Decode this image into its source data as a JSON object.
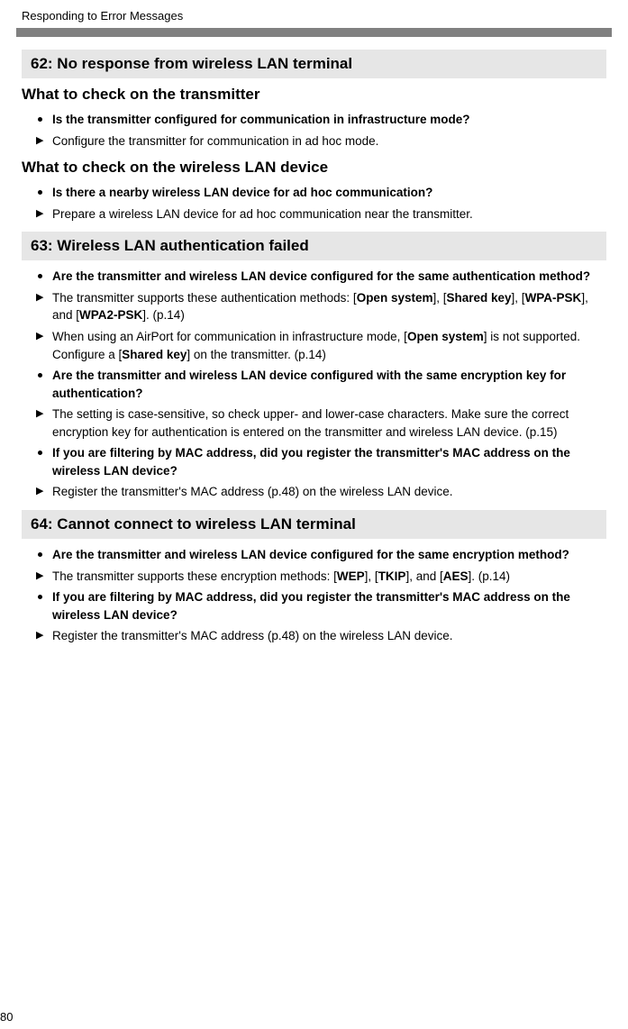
{
  "runningHeader": "Responding to Error Messages",
  "pageNumber": "80",
  "sections": [
    {
      "code": "62",
      "title": "No response from wireless LAN terminal",
      "blocks": [
        {
          "subheading": "What to check on the transmitter",
          "items": [
            {
              "kind": "q",
              "segments": [
                {
                  "t": "Is the transmitter configured for communication in infrastructure mode?"
                }
              ]
            },
            {
              "kind": "a",
              "segments": [
                {
                  "t": "Configure the transmitter for communication in ad hoc mode."
                }
              ]
            }
          ]
        },
        {
          "subheading": "What to check on the wireless LAN device",
          "items": [
            {
              "kind": "q",
              "segments": [
                {
                  "t": "Is there a nearby wireless LAN device for ad hoc communication?"
                }
              ]
            },
            {
              "kind": "a",
              "segments": [
                {
                  "t": "Prepare a wireless LAN device for ad hoc communication near the transmitter."
                }
              ]
            }
          ]
        }
      ]
    },
    {
      "code": "63",
      "title": "Wireless LAN authentication failed",
      "blocks": [
        {
          "subheading": null,
          "items": [
            {
              "kind": "q",
              "segments": [
                {
                  "t": "Are the transmitter and wireless LAN device configured for the same authentication method?"
                }
              ]
            },
            {
              "kind": "a",
              "segments": [
                {
                  "t": "The transmitter supports these authentication methods: ["
                },
                {
                  "t": "Open system",
                  "b": true
                },
                {
                  "t": "], ["
                },
                {
                  "t": "Shared key",
                  "b": true
                },
                {
                  "t": "], ["
                },
                {
                  "t": "WPA-PSK",
                  "b": true
                },
                {
                  "t": "], and ["
                },
                {
                  "t": "WPA2-PSK",
                  "b": true
                },
                {
                  "t": "]. (p.14)"
                }
              ]
            },
            {
              "kind": "a",
              "segments": [
                {
                  "t": "When using an AirPort for communication in infrastructure mode, ["
                },
                {
                  "t": "Open system",
                  "b": true
                },
                {
                  "t": "] is not supported. Configure a ["
                },
                {
                  "t": "Shared key",
                  "b": true
                },
                {
                  "t": "] on the transmitter. (p.14)"
                }
              ]
            },
            {
              "kind": "q",
              "segments": [
                {
                  "t": "Are the transmitter and wireless LAN device configured with the same encryption key for authentication?"
                }
              ]
            },
            {
              "kind": "a",
              "segments": [
                {
                  "t": "The setting is case-sensitive, so check upper- and lower-case characters. Make sure the correct encryption key for authentication is entered on the transmitter and wireless LAN device. (p.15)"
                }
              ]
            },
            {
              "kind": "q",
              "segments": [
                {
                  "t": "If you are filtering by MAC address, did you register the transmitter's MAC address on the wireless LAN device?"
                }
              ]
            },
            {
              "kind": "a",
              "segments": [
                {
                  "t": "Register the transmitter's MAC address (p.48) on the wireless LAN device."
                }
              ]
            }
          ]
        }
      ]
    },
    {
      "code": "64",
      "title": "Cannot connect to wireless LAN terminal",
      "blocks": [
        {
          "subheading": null,
          "items": [
            {
              "kind": "q",
              "segments": [
                {
                  "t": "Are the transmitter and wireless LAN device configured for the same encryption method?"
                }
              ]
            },
            {
              "kind": "a",
              "segments": [
                {
                  "t": "The transmitter supports these encryption methods: ["
                },
                {
                  "t": "WEP",
                  "b": true
                },
                {
                  "t": "], ["
                },
                {
                  "t": "TKIP",
                  "b": true
                },
                {
                  "t": "], and ["
                },
                {
                  "t": "AES",
                  "b": true
                },
                {
                  "t": "]. (p.14)"
                }
              ]
            },
            {
              "kind": "q",
              "segments": [
                {
                  "t": "If you are filtering by MAC address, did you register the transmitter's MAC address on the wireless LAN device?"
                }
              ]
            },
            {
              "kind": "a",
              "segments": [
                {
                  "t": "Register the transmitter's MAC address (p.48) on the wireless LAN device."
                }
              ]
            }
          ]
        }
      ]
    }
  ]
}
